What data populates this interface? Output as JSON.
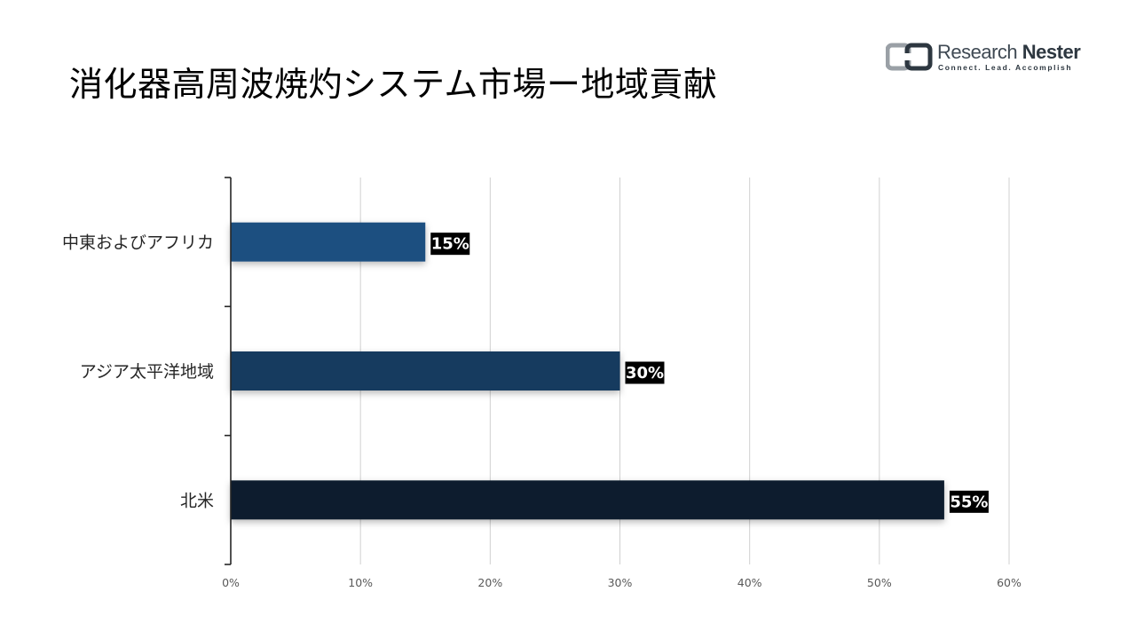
{
  "chart_data": {
    "type": "bar",
    "orientation": "horizontal",
    "title": "消化器高周波焼灼システム市場ー地域貢献",
    "categories": [
      "中東およびアフリカ",
      "アジア太平洋地域",
      "北米"
    ],
    "values": [
      15,
      30,
      55
    ],
    "data_labels": [
      "15%",
      "30%",
      "55%"
    ],
    "bar_colors": [
      "#1e4f80",
      "#183a5e",
      "#0f1e2e"
    ],
    "xlim": [
      0,
      60
    ],
    "xticks": [
      0,
      10,
      20,
      30,
      40,
      50,
      60
    ],
    "xtick_labels": [
      "0%",
      "10%",
      "20%",
      "30%",
      "40%",
      "50%",
      "60%"
    ],
    "xlabel": "",
    "ylabel": "",
    "grid": "vertical",
    "legend": "none"
  },
  "brand": {
    "name_part1": "Research",
    "name_part2": "Nester",
    "tagline": "Connect. Lead. Accomplish"
  }
}
